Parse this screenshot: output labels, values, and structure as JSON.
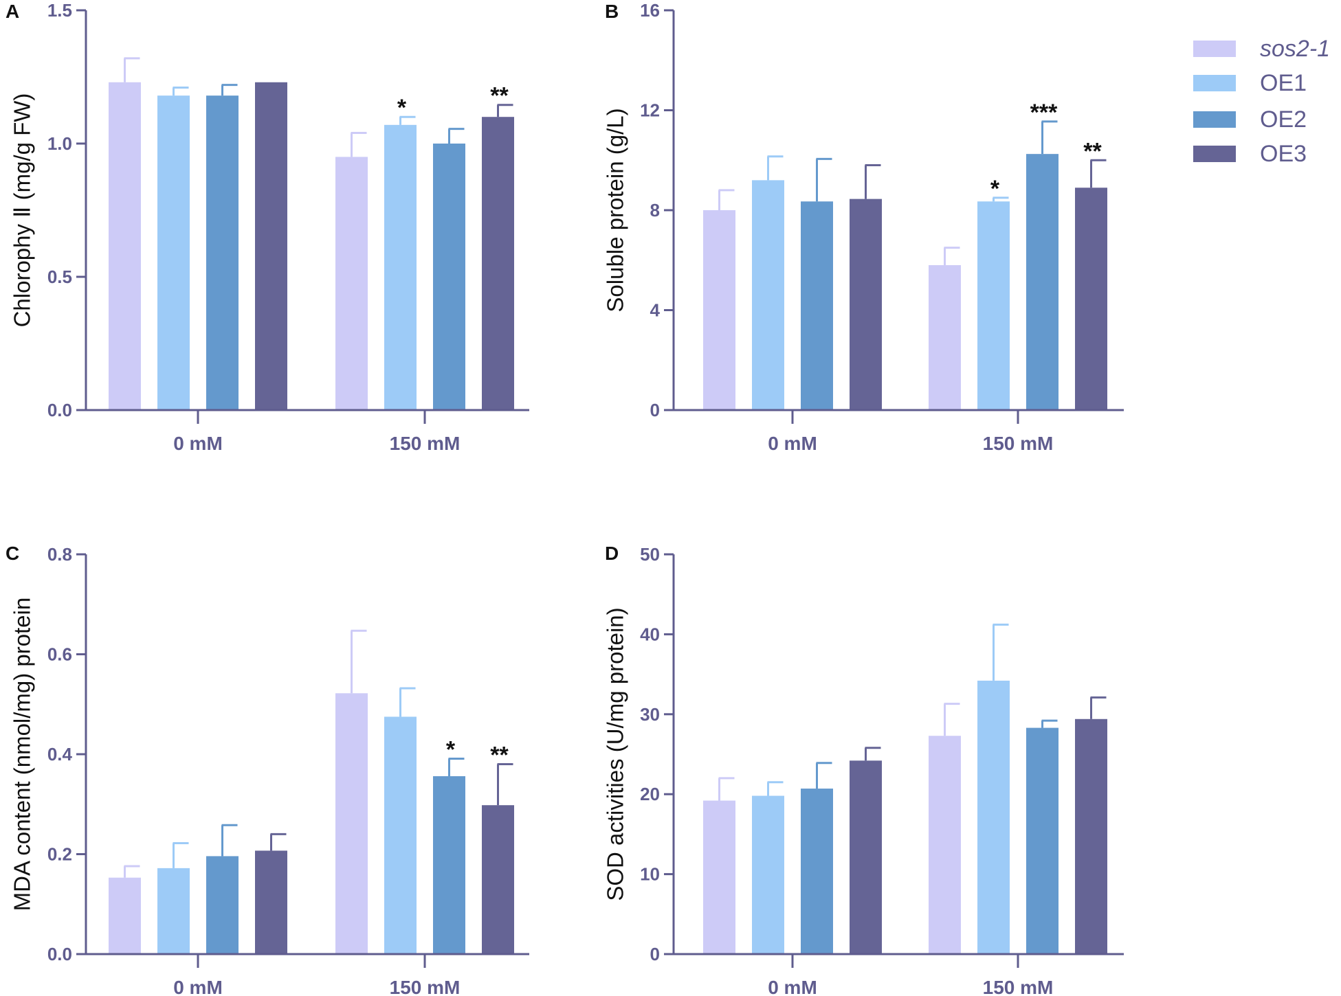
{
  "colors": {
    "axis": "#5f5c8e",
    "series": [
      "#cdcbf7",
      "#9dcbf7",
      "#6499cd",
      "#656495"
    ]
  },
  "legend": {
    "entries": [
      "sos2-1",
      "OE1",
      "OE2",
      "OE3"
    ],
    "italic": [
      true,
      false,
      false,
      false
    ]
  },
  "chart_data": [
    {
      "panel": "A",
      "type": "bar",
      "ylabel": "Chlorophy Ⅱ (mg/g FW)",
      "categories": [
        "0 mM",
        "150 mM"
      ],
      "ylim": [
        0,
        1.5
      ],
      "yticks": [
        0.0,
        0.5,
        1.0,
        1.5
      ],
      "ytick_labels": [
        "0.0",
        "0.5",
        "1.0",
        "1.5"
      ],
      "series": [
        {
          "name": "sos2-1",
          "values": [
            1.23,
            0.95
          ],
          "errors": [
            0.09,
            0.09
          ]
        },
        {
          "name": "OE1",
          "values": [
            1.18,
            1.07
          ],
          "errors": [
            0.03,
            0.03
          ]
        },
        {
          "name": "OE2",
          "values": [
            1.18,
            1.0
          ],
          "errors": [
            0.04,
            0.055
          ]
        },
        {
          "name": "OE3",
          "values": [
            1.23,
            1.1
          ],
          "errors": [
            0.0,
            0.045
          ]
        }
      ],
      "annotations": [
        {
          "category": 1,
          "series": 1,
          "text": "*"
        },
        {
          "category": 1,
          "series": 3,
          "text": "**"
        }
      ]
    },
    {
      "panel": "B",
      "type": "bar",
      "ylabel": "Soluble protein  (g/L)",
      "categories": [
        "0 mM",
        "150 mM"
      ],
      "ylim": [
        0,
        16
      ],
      "yticks": [
        0,
        4,
        8,
        12,
        16
      ],
      "ytick_labels": [
        "0",
        "4",
        "8",
        "12",
        "16"
      ],
      "series": [
        {
          "name": "sos2-1",
          "values": [
            8.0,
            5.8
          ],
          "errors": [
            0.8,
            0.7
          ]
        },
        {
          "name": "OE1",
          "values": [
            9.2,
            8.35
          ],
          "errors": [
            0.95,
            0.15
          ]
        },
        {
          "name": "OE2",
          "values": [
            8.35,
            10.25
          ],
          "errors": [
            1.7,
            1.3
          ]
        },
        {
          "name": "OE3",
          "values": [
            8.45,
            8.9
          ],
          "errors": [
            1.35,
            1.1
          ]
        }
      ],
      "annotations": [
        {
          "category": 1,
          "series": 1,
          "text": "*"
        },
        {
          "category": 1,
          "series": 2,
          "text": "***"
        },
        {
          "category": 1,
          "series": 3,
          "text": "**"
        }
      ]
    },
    {
      "panel": "C",
      "type": "bar",
      "ylabel": "MDA content (nmol/mg) protein",
      "categories": [
        "0 mM",
        "150 mM"
      ],
      "ylim": [
        0,
        0.8
      ],
      "yticks": [
        0.0,
        0.2,
        0.4,
        0.6,
        0.8
      ],
      "ytick_labels": [
        "0.0",
        "0.2",
        "0.4",
        "0.6",
        "0.8"
      ],
      "series": [
        {
          "name": "sos2-1",
          "values": [
            0.153,
            0.522
          ],
          "errors": [
            0.023,
            0.125
          ]
        },
        {
          "name": "OE1",
          "values": [
            0.172,
            0.475
          ],
          "errors": [
            0.05,
            0.057
          ]
        },
        {
          "name": "OE2",
          "values": [
            0.196,
            0.356
          ],
          "errors": [
            0.062,
            0.035
          ]
        },
        {
          "name": "OE3",
          "values": [
            0.207,
            0.298
          ],
          "errors": [
            0.033,
            0.082
          ]
        }
      ],
      "annotations": [
        {
          "category": 1,
          "series": 2,
          "text": "*"
        },
        {
          "category": 1,
          "series": 3,
          "text": "**"
        }
      ]
    },
    {
      "panel": "D",
      "type": "bar",
      "ylabel": "SOD activities (U/mg protein)",
      "categories": [
        "0 mM",
        "150 mM"
      ],
      "ylim": [
        0,
        50
      ],
      "yticks": [
        0,
        10,
        20,
        30,
        40,
        50
      ],
      "ytick_labels": [
        "0",
        "10",
        "20",
        "30",
        "40",
        "50"
      ],
      "series": [
        {
          "name": "sos2-1",
          "values": [
            19.2,
            27.3
          ],
          "errors": [
            2.8,
            4.0
          ]
        },
        {
          "name": "OE1",
          "values": [
            19.8,
            34.2
          ],
          "errors": [
            1.7,
            7.0
          ]
        },
        {
          "name": "OE2",
          "values": [
            20.7,
            28.3
          ],
          "errors": [
            3.2,
            0.9
          ]
        },
        {
          "name": "OE3",
          "values": [
            24.2,
            29.4
          ],
          "errors": [
            1.6,
            2.7
          ]
        }
      ],
      "annotations": []
    }
  ]
}
